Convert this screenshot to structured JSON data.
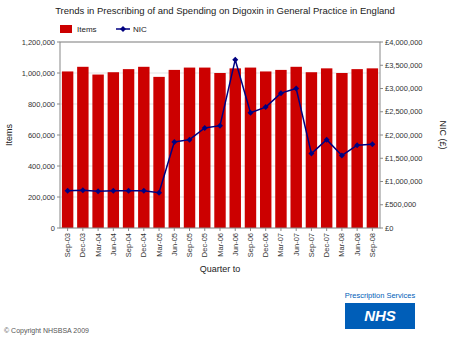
{
  "chart_data": {
    "type": "bar",
    "title": "Trends in Prescribing of and Spending on Digoxin in General Practice in England",
    "x_label": "Quarter to",
    "y_label": "Items",
    "y2_label": "NIC (£)",
    "categories": [
      "Sep-03",
      "Dec-03",
      "Mar-04",
      "Jun-04",
      "Sep-04",
      "Dec-04",
      "Mar-05",
      "Jun-05",
      "Sep-05",
      "Dec-05",
      "Mar-06",
      "Jun-06",
      "Sep-06",
      "Dec-06",
      "Mar-07",
      "Jun-07",
      "Sep-07",
      "Dec-07",
      "Mar-08",
      "Jun-08",
      "Sep-08"
    ],
    "series": [
      {
        "name": "Items",
        "type": "bar",
        "color": "#cc0000",
        "values": [
          1010000,
          1040000,
          990000,
          1005000,
          1025000,
          1040000,
          975000,
          1020000,
          1035000,
          1035000,
          1000000,
          1030000,
          1035000,
          1010000,
          1020000,
          1040000,
          1005000,
          1030000,
          1000000,
          1025000,
          1030000
        ]
      },
      {
        "name": "NIC",
        "type": "line",
        "axis": "y2",
        "color": "#000080",
        "marker": "diamond",
        "values": [
          800000,
          810000,
          790000,
          800000,
          800000,
          800000,
          760000,
          1850000,
          1900000,
          2150000,
          2200000,
          3620000,
          2480000,
          2600000,
          2900000,
          3000000,
          1600000,
          1900000,
          1560000,
          1780000,
          1800000
        ]
      }
    ],
    "ylim": [
      0,
      1200000
    ],
    "yticks": [
      0,
      {
        "value": 200000,
        "label": "200,000"
      },
      {
        "value": 400000,
        "label": "400,000"
      },
      {
        "value": 600000,
        "label": "600,000"
      },
      {
        "value": 800000,
        "label": "800,000"
      },
      {
        "value": 1000000,
        "label": "1,000,000"
      },
      {
        "value": 1200000,
        "label": "1,200,000"
      }
    ],
    "y2lim": [
      0,
      4000000
    ],
    "y2ticks": [
      {
        "value": 0,
        "label": "£0"
      },
      {
        "value": 500000,
        "label": "£500,000"
      },
      {
        "value": 1000000,
        "label": "£1,000,000"
      },
      {
        "value": 1500000,
        "label": "£1,500,000"
      },
      {
        "value": 2000000,
        "label": "£2,000,000"
      },
      {
        "value": 2500000,
        "label": "£2,500,000"
      },
      {
        "value": 3000000,
        "label": "£3,000,000"
      },
      {
        "value": 3500000,
        "label": "£3,500,000"
      },
      {
        "value": 4000000,
        "label": "£4,000,000"
      }
    ],
    "grid": true,
    "legend": "upper left",
    "annotations": [
      {
        "text": "© Copyright NHSBSA 2009"
      },
      {
        "text": "Prescription Services",
        "color": "#005EB8"
      },
      {
        "text": "NHS",
        "color": "#005EB8"
      }
    ]
  }
}
